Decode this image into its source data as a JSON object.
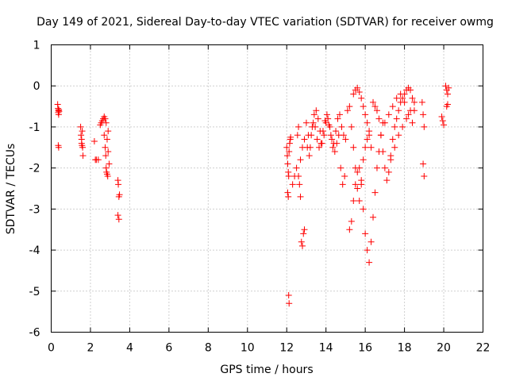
{
  "chart_data": {
    "type": "scatter",
    "title": "Day 149 of 2021, Sidereal Day-to-day VTEC variation (SDTVAR) for receiver owmg",
    "xlabel": "GPS time / hours",
    "ylabel": "SDTVAR / TECUs",
    "xlim": [
      0,
      22
    ],
    "ylim": [
      -6,
      1
    ],
    "xticks": [
      0,
      2,
      4,
      6,
      8,
      10,
      12,
      14,
      16,
      18,
      20,
      22
    ],
    "yticks": [
      1,
      0,
      -1,
      -2,
      -3,
      -4,
      -5,
      -6
    ],
    "grid": true,
    "marker": "plus",
    "color": "#ff0000",
    "series": [
      {
        "name": "SDTVAR",
        "x": [
          0.33,
          0.35,
          0.36,
          0.37,
          0.38,
          0.39,
          0.4,
          0.36,
          0.38,
          1.5,
          1.52,
          1.55,
          1.57,
          1.6,
          1.62,
          1.55,
          1.58,
          2.2,
          2.25,
          2.3,
          2.4,
          2.5,
          2.55,
          2.6,
          2.65,
          2.7,
          2.75,
          2.78,
          2.8,
          2.82,
          2.85,
          2.88,
          2.9,
          2.7,
          2.75,
          2.8,
          2.85,
          2.9,
          2.95,
          3.4,
          3.42,
          3.45,
          3.48,
          3.4,
          3.45,
          12.0,
          12.03,
          12.05,
          12.08,
          12.1,
          12.12,
          12.15,
          12.18,
          12.2,
          12.05,
          12.08,
          12.1,
          12.12,
          12.3,
          12.4,
          12.5,
          12.55,
          12.6,
          12.65,
          12.7,
          12.75,
          12.8,
          12.85,
          12.9,
          12.6,
          12.7,
          12.8,
          12.9,
          13.0,
          13.1,
          13.2,
          13.3,
          13.4,
          13.5,
          13.6,
          13.7,
          13.8,
          13.9,
          14.0,
          14.1,
          14.2,
          14.3,
          14.4,
          14.5,
          14.6,
          14.7,
          14.8,
          14.9,
          15.0,
          13.05,
          13.15,
          13.25,
          13.35,
          13.45,
          13.55,
          13.65,
          13.75,
          13.85,
          13.95,
          14.05,
          14.15,
          14.25,
          14.35,
          14.45,
          14.55,
          14.65,
          14.75,
          14.85,
          14.95,
          15.1,
          15.2,
          15.3,
          15.4,
          15.5,
          15.6,
          15.7,
          15.8,
          15.9,
          16.0,
          16.1,
          16.2,
          15.2,
          15.3,
          15.4,
          15.5,
          15.6,
          15.7,
          15.8,
          15.9,
          16.0,
          16.1,
          16.2,
          16.3,
          16.4,
          16.5,
          16.6,
          16.7,
          16.8,
          16.9,
          15.4,
          15.5,
          15.6,
          15.7,
          15.8,
          15.9,
          16.0,
          16.1,
          16.2,
          16.3,
          16.4,
          16.5,
          16.6,
          16.7,
          16.8,
          16.9,
          17.0,
          17.1,
          17.2,
          17.3,
          17.4,
          17.5,
          17.6,
          17.7,
          17.8,
          17.9,
          18.0,
          18.1,
          18.2,
          18.3,
          18.4,
          18.5,
          17.0,
          17.2,
          17.4,
          17.6,
          17.8,
          18.0,
          18.2,
          18.4,
          17.3,
          17.5,
          17.7,
          17.9,
          18.1,
          18.3,
          18.5,
          18.9,
          18.95,
          19.0,
          18.95,
          19.0,
          19.9,
          19.95,
          20.0,
          20.1,
          20.15,
          20.2,
          20.15,
          20.2,
          20.25
        ],
        "y": [
          -0.45,
          -0.55,
          -0.65,
          -0.6,
          -0.7,
          -0.58,
          -0.62,
          -1.45,
          -1.5,
          -1.0,
          -1.2,
          -1.4,
          -1.45,
          -1.5,
          -1.7,
          -1.3,
          -1.1,
          -1.35,
          -1.8,
          -1.8,
          -1.8,
          -0.95,
          -0.9,
          -0.85,
          -0.8,
          -1.2,
          -1.5,
          -1.7,
          -2.0,
          -2.1,
          -2.15,
          -2.2,
          -1.1,
          -0.75,
          -0.8,
          -0.9,
          -1.3,
          -1.6,
          -1.9,
          -2.3,
          -2.4,
          -2.7,
          -2.65,
          -3.15,
          -3.25,
          -1.5,
          -1.7,
          -1.9,
          -2.1,
          -2.2,
          -1.6,
          -1.4,
          -1.3,
          -1.25,
          -2.6,
          -2.7,
          -5.1,
          -5.3,
          -2.4,
          -2.2,
          -2.0,
          -1.2,
          -1.0,
          -2.4,
          -2.7,
          -3.8,
          -3.9,
          -3.6,
          -3.5,
          -2.2,
          -1.8,
          -1.5,
          -1.3,
          -0.9,
          -1.2,
          -1.5,
          -1.0,
          -0.7,
          -0.6,
          -0.8,
          -1.1,
          -1.4,
          -1.2,
          -0.9,
          -0.8,
          -1.0,
          -1.3,
          -1.4,
          -1.1,
          -0.8,
          -0.7,
          -1.0,
          -1.2,
          -1.3,
          -1.5,
          -1.7,
          -1.2,
          -0.9,
          -1.0,
          -1.3,
          -1.5,
          -1.4,
          -1.1,
          -0.85,
          -0.7,
          -0.95,
          -1.2,
          -1.5,
          -1.6,
          -1.4,
          -1.2,
          -2.0,
          -2.4,
          -2.2,
          -0.6,
          -0.5,
          -1.0,
          -1.5,
          -2.0,
          -2.5,
          -2.8,
          -2.3,
          -1.8,
          -1.5,
          -1.3,
          -1.1,
          -3.5,
          -3.3,
          -2.8,
          -2.4,
          -2.1,
          -2.0,
          -2.4,
          -3.0,
          -3.6,
          -4.0,
          -4.3,
          -3.8,
          -3.2,
          -2.6,
          -2.0,
          -1.6,
          -1.2,
          -0.9,
          -0.2,
          -0.1,
          -0.05,
          -0.15,
          -0.3,
          -0.5,
          -0.7,
          -0.9,
          -1.2,
          -1.5,
          -0.4,
          -0.5,
          -0.6,
          -0.8,
          -1.2,
          -1.6,
          -2.0,
          -2.3,
          -2.1,
          -1.7,
          -1.3,
          -1.0,
          -0.8,
          -0.6,
          -0.4,
          -0.3,
          -0.2,
          -0.1,
          -0.05,
          -0.1,
          -0.3,
          -0.6,
          -0.9,
          -0.7,
          -0.5,
          -0.3,
          -0.2,
          -0.4,
          -0.7,
          -0.9,
          -1.8,
          -1.5,
          -1.2,
          -1.0,
          -0.8,
          -0.6,
          -0.4,
          -0.4,
          -0.7,
          -1.0,
          -1.9,
          -2.2,
          -0.75,
          -0.85,
          -0.95,
          0.0,
          -0.1,
          -0.2,
          -0.5,
          -0.45,
          -0.05
        ]
      }
    ]
  }
}
